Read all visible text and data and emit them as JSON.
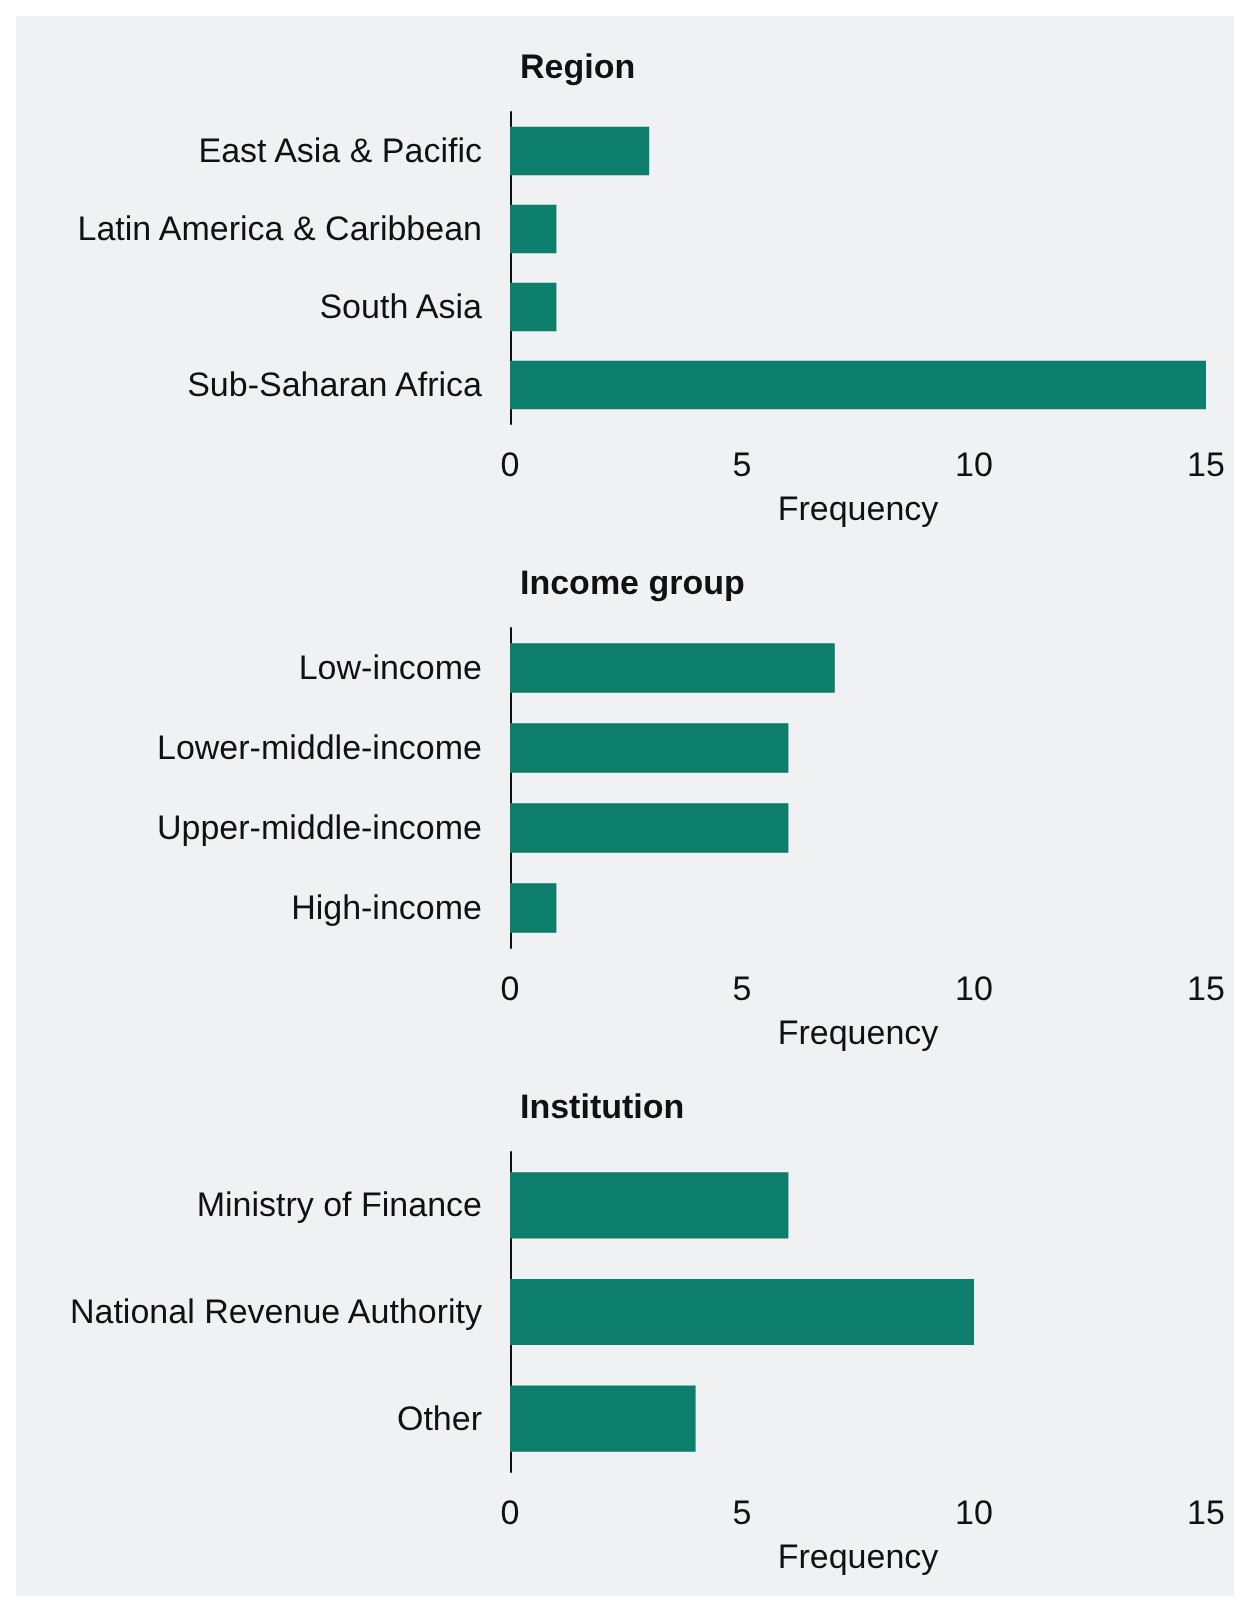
{
  "chart_data": [
    {
      "type": "bar",
      "orientation": "horizontal",
      "title": "Region",
      "xlabel": "Frequency",
      "categories": [
        "East Asia & Pacific",
        "Latin America & Caribbean",
        "South Asia",
        "Sub-Saharan Africa"
      ],
      "values": [
        3,
        1,
        1,
        15
      ],
      "color": "#0e7e6c",
      "xlim": [
        0,
        15
      ],
      "xticks": [
        0,
        5,
        10,
        15
      ]
    },
    {
      "type": "bar",
      "orientation": "horizontal",
      "title": "Income group",
      "xlabel": "Frequency",
      "categories": [
        "Low-income",
        "Lower-middle-income",
        "Upper-middle-income",
        "High-income"
      ],
      "values": [
        7,
        6,
        6,
        1
      ],
      "color": "#0e7e6c",
      "xlim": [
        0,
        15
      ],
      "xticks": [
        0,
        5,
        10,
        15
      ]
    },
    {
      "type": "bar",
      "orientation": "horizontal",
      "title": "Institution",
      "xlabel": "Frequency",
      "categories": [
        "Ministry of Finance",
        "National Revenue Authority",
        "Other"
      ],
      "values": [
        6,
        10,
        4
      ],
      "color": "#0e7e6c",
      "xlim": [
        0,
        15
      ],
      "xticks": [
        0,
        5,
        10,
        15
      ]
    }
  ]
}
